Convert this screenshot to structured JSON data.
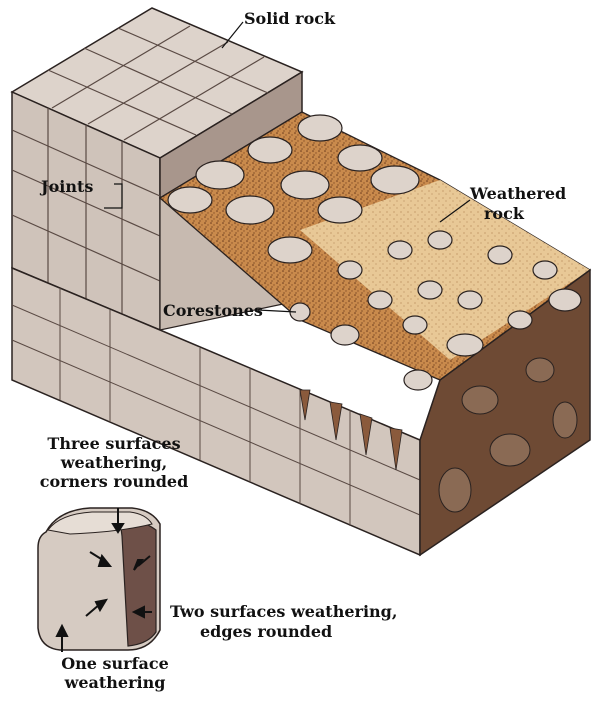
{
  "labels": {
    "solid_rock": "Solid rock",
    "joints": "Joints",
    "weathered_rock_line1": "Weathered",
    "weathered_rock_line2": "rock",
    "corestones": "Corestones",
    "three_surfaces": [
      "Three surfaces",
      "weathering,",
      "corners rounded"
    ],
    "two_surfaces_line1": "Two surfaces weathering,",
    "two_surfaces_line2": "edges rounded",
    "one_surface": [
      "One surface",
      "weathering"
    ]
  },
  "colors": {
    "rock_light": "#d6cbc2",
    "rock_shade": "#a8968c",
    "rock_dark": "#6e5048",
    "soil": "#d9a766",
    "soil_dark": "#7a4a28",
    "outline": "#2a2220"
  }
}
